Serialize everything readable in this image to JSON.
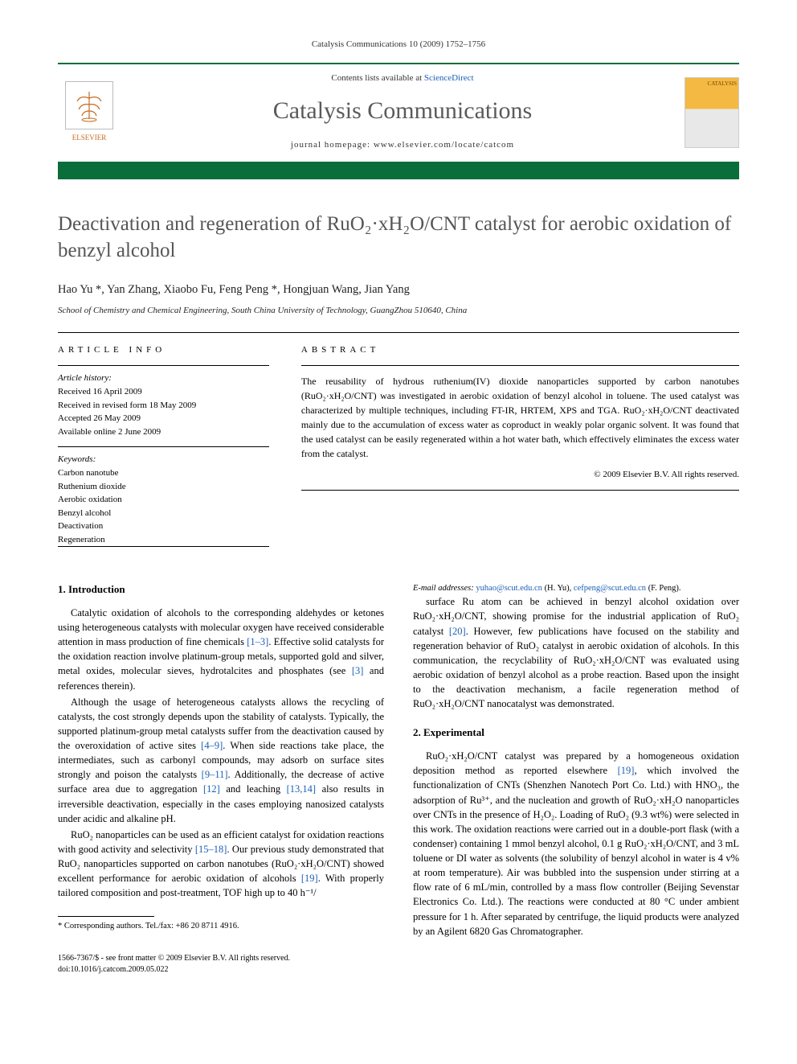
{
  "journal_ref": "Catalysis Communications 10 (2009) 1752–1756",
  "header": {
    "lists_text": "Contents lists available at ",
    "sd": "ScienceDirect",
    "journal": "Catalysis Communications",
    "homepage_label": "journal homepage: ",
    "homepage_url": "www.elsevier.com/locate/catcom",
    "publisher": "ELSEVIER",
    "cover_text": "CATALYSIS"
  },
  "title_html": "Deactivation and regeneration of RuO₂·xH₂O/CNT catalyst for aerobic oxidation of benzyl alcohol",
  "authors": "Hao Yu *, Yan Zhang, Xiaobo Fu, Feng Peng *, Hongjuan Wang, Jian Yang",
  "affiliation": "School of Chemistry and Chemical Engineering, South China University of Technology, GuangZhou 510640, China",
  "article_info": {
    "heading": "ARTICLE INFO",
    "history_label": "Article history:",
    "received": "Received 16 April 2009",
    "revised": "Received in revised form 18 May 2009",
    "accepted": "Accepted 26 May 2009",
    "online": "Available online 2 June 2009",
    "keywords_label": "Keywords:",
    "keywords": [
      "Carbon nanotube",
      "Ruthenium dioxide",
      "Aerobic oxidation",
      "Benzyl alcohol",
      "Deactivation",
      "Regeneration"
    ]
  },
  "abstract": {
    "heading": "ABSTRACT",
    "text": "The reusability of hydrous ruthenium(IV) dioxide nanoparticles supported by carbon nanotubes (RuO₂·xH₂O/CNT) was investigated in aerobic oxidation of benzyl alcohol in toluene. The used catalyst was characterized by multiple techniques, including FT-IR, HRTEM, XPS and TGA. RuO₂·xH₂O/CNT deactivated mainly due to the accumulation of excess water as coproduct in weakly polar organic solvent. It was found that the used catalyst can be easily regenerated within a hot water bath, which effectively eliminates the excess water from the catalyst.",
    "copyright": "© 2009 Elsevier B.V. All rights reserved."
  },
  "sections": {
    "intro_heading": "1. Introduction",
    "intro_p1": "Catalytic oxidation of alcohols to the corresponding aldehydes or ketones using heterogeneous catalysts with molecular oxygen have received considerable attention in mass production of fine chemicals [1–3]. Effective solid catalysts for the oxidation reaction involve platinum-group metals, supported gold and silver, metal oxides, molecular sieves, hydrotalcites and phosphates (see [3] and references therein).",
    "intro_p2": "Although the usage of heterogeneous catalysts allows the recycling of catalysts, the cost strongly depends upon the stability of catalysts. Typically, the supported platinum-group metal catalysts suffer from the deactivation caused by the overoxidation of active sites [4–9]. When side reactions take place, the intermediates, such as carbonyl compounds, may adsorb on surface sites strongly and poison the catalysts [9–11]. Additionally, the decrease of active surface area due to aggregation [12] and leaching [13,14] also results in irreversible deactivation, especially in the cases employing nanosized catalysts under acidic and alkaline pH.",
    "intro_p3": "RuO₂ nanoparticles can be used as an efficient catalyst for oxidation reactions with good activity and selectivity [15–18]. Our previous study demonstrated that RuO₂ nanoparticles supported on carbon nanotubes (RuO₂·xH₂O/CNT) showed excellent performance for aerobic oxidation of alcohols [19]. With properly tailored composition and post-treatment, TOF high up to 40 h⁻¹/",
    "intro_p4": "surface Ru atom can be achieved in benzyl alcohol oxidation over RuO₂·xH₂O/CNT, showing promise for the industrial application of RuO₂ catalyst [20]. However, few publications have focused on the stability and regeneration behavior of RuO₂ catalyst in aerobic oxidation of alcohols. In this communication, the recyclability of RuO₂·xH₂O/CNT was evaluated using aerobic oxidation of benzyl alcohol as a probe reaction. Based upon the insight to the deactivation mechanism, a facile regeneration method of RuO₂·xH₂O/CNT nanocatalyst was demonstrated.",
    "exp_heading": "2. Experimental",
    "exp_p1": "RuO₂·xH₂O/CNT catalyst was prepared by a homogeneous oxidation deposition method as reported elsewhere [19], which involved the functionalization of CNTs (Shenzhen Nanotech Port Co. Ltd.) with HNO₃, the adsorption of Ru³⁺, and the nucleation and growth of RuO₂·xH₂O nanoparticles over CNTs in the presence of H₂O₂. Loading of RuO₂ (9.3 wt%) were selected in this work. The oxidation reactions were carried out in a double-port flask (with a condenser) containing 1 mmol benzyl alcohol, 0.1 g RuO₂·xH₂O/CNT, and 3 mL toluene or DI water as solvents (the solubility of benzyl alcohol in water is 4 v% at room temperature). Air was bubbled into the suspension under stirring at a flow rate of 6 mL/min, controlled by a mass flow controller (Beijing Sevenstar Electronics Co. Ltd.). The reactions were conducted at 80 °C under ambient pressure for 1 h. After separated by centrifuge, the liquid products were analyzed by an Agilent 6820 Gas Chromatographer."
  },
  "footnote": {
    "corr": "* Corresponding authors. Tel./fax: +86 20 8711 4916.",
    "email_label": "E-mail addresses: ",
    "email1": "yuhao@scut.edu.cn",
    "name1": " (H. Yu), ",
    "email2": "cefpeng@scut.edu.cn",
    "name2": " (F. Peng)."
  },
  "bottom": {
    "issn": "1566-7367/$ - see front matter © 2009 Elsevier B.V. All rights reserved.",
    "doi": "doi:10.1016/j.catcom.2009.05.022"
  },
  "colors": {
    "brand_green": "#0a6e3a",
    "link_blue": "#1a5fb4",
    "title_gray": "#555555",
    "orange": "#c66b1e"
  }
}
